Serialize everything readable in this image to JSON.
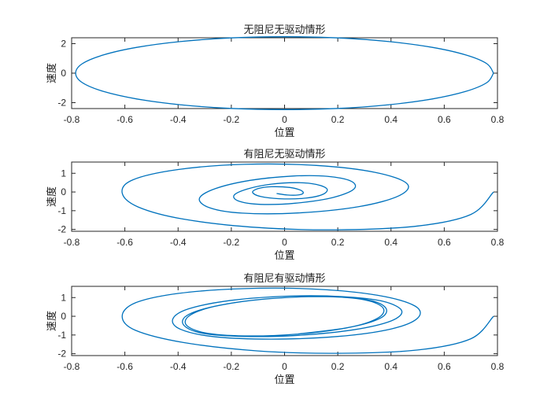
{
  "chart_data": [
    {
      "type": "line",
      "title": "无阻尼无驱动情形",
      "xlabel": "位置",
      "ylabel": "速度",
      "xlim": [
        -0.8,
        0.8
      ],
      "ylim": [
        -2.4,
        2.4
      ],
      "xticks": [
        -0.8,
        -0.6,
        -0.4,
        -0.2,
        0,
        0.2,
        0.4,
        0.6,
        0.8
      ],
      "xtick_labels": [
        "-0.8",
        "-0.6",
        "-0.4",
        "-0.2",
        "0",
        "0.2",
        "0.4",
        "0.6",
        "0.8"
      ],
      "yticks": [
        -2,
        0,
        2
      ],
      "ytick_labels": [
        "-2",
        "0",
        "2"
      ],
      "grid": false,
      "color": "#0072BD",
      "series": [
        {
          "x": [
            0.785,
            0.76,
            0.68,
            0.555,
            0.393,
            0.203,
            0.0,
            -0.203,
            -0.393,
            -0.555,
            -0.68,
            -0.76,
            -0.785,
            -0.76,
            -0.68,
            -0.555,
            -0.393,
            -0.203,
            0.0,
            0.203,
            0.393,
            0.555,
            0.68,
            0.76,
            0.785
          ],
          "y": [
            0.0,
            -0.64,
            -1.24,
            -1.75,
            -2.14,
            -2.39,
            -2.47,
            -2.39,
            -2.14,
            -1.75,
            -1.24,
            -0.64,
            0.0,
            0.64,
            1.24,
            1.75,
            2.14,
            2.39,
            2.47,
            2.39,
            2.14,
            1.75,
            1.24,
            0.64,
            0.0
          ]
        }
      ]
    },
    {
      "type": "line",
      "title": "有阻尼无驱动情形",
      "xlabel": "位置",
      "ylabel": "速度",
      "xlim": [
        -0.8,
        0.8
      ],
      "ylim": [
        -2.1,
        1.6
      ],
      "xticks": [
        -0.8,
        -0.6,
        -0.4,
        -0.2,
        0,
        0.2,
        0.4,
        0.6,
        0.8
      ],
      "xtick_labels": [
        "-0.8",
        "-0.6",
        "-0.4",
        "-0.2",
        "0",
        "0.2",
        "0.4",
        "0.6",
        "0.8"
      ],
      "yticks": [
        -2,
        -1,
        0,
        1
      ],
      "ytick_labels": [
        "-2",
        "-1",
        "0",
        "1"
      ],
      "grid": false,
      "color": "#0072BD",
      "series": [
        {
          "x": [
            0.785,
            0.7,
            0.5,
            0.2,
            -0.1,
            -0.38,
            -0.55,
            -0.61,
            -0.57,
            -0.4,
            -0.15,
            0.12,
            0.34,
            0.46,
            0.43,
            0.28,
            0.05,
            -0.16,
            -0.28,
            -0.32,
            -0.26,
            -0.13,
            0.03,
            0.16,
            0.25,
            0.26,
            0.18,
            0.04,
            -0.09,
            -0.17,
            -0.19,
            -0.14,
            -0.05,
            0.05,
            0.12,
            0.16,
            0.14,
            0.07,
            -0.02,
            -0.09,
            -0.12,
            -0.1,
            -0.05,
            0.02,
            0.06,
            0.07,
            0.05,
            0.01,
            -0.03
          ],
          "y": [
            0.0,
            -1.2,
            -1.82,
            -2.02,
            -1.9,
            -1.45,
            -0.8,
            -0.05,
            0.65,
            1.2,
            1.48,
            1.42,
            1.05,
            0.45,
            -0.2,
            -0.78,
            -1.12,
            -1.13,
            -0.85,
            -0.35,
            0.18,
            0.62,
            0.85,
            0.84,
            0.58,
            0.15,
            -0.3,
            -0.6,
            -0.66,
            -0.5,
            -0.18,
            0.16,
            0.42,
            0.5,
            0.4,
            0.15,
            -0.15,
            -0.34,
            -0.36,
            -0.24,
            -0.02,
            0.18,
            0.28,
            0.24,
            0.1,
            -0.06,
            -0.16,
            -0.16,
            -0.08
          ]
        }
      ]
    },
    {
      "type": "line",
      "title": "有阻尼有驱动情形",
      "xlabel": "位置",
      "ylabel": "速度",
      "xlim": [
        -0.8,
        0.8
      ],
      "ylim": [
        -2.1,
        1.6
      ],
      "xticks": [
        -0.8,
        -0.6,
        -0.4,
        -0.2,
        0,
        0.2,
        0.4,
        0.6,
        0.8
      ],
      "xtick_labels": [
        "-0.8",
        "-0.6",
        "-0.4",
        "-0.2",
        "0",
        "0.2",
        "0.4",
        "0.6",
        "0.8"
      ],
      "yticks": [
        -2,
        -1,
        0,
        1
      ],
      "ytick_labels": [
        "-2",
        "-1",
        "0",
        "1"
      ],
      "grid": false,
      "color": "#0072BD",
      "series": [
        {
          "x": [
            0.785,
            0.7,
            0.5,
            0.2,
            -0.1,
            -0.38,
            -0.56,
            -0.61,
            -0.56,
            -0.4,
            -0.15,
            0.12,
            0.35,
            0.49,
            0.5,
            0.4,
            0.2,
            -0.05,
            -0.26,
            -0.39,
            -0.42,
            -0.36,
            -0.2,
            0.02,
            0.22,
            0.37,
            0.44,
            0.4,
            0.26,
            0.05,
            -0.15,
            -0.31,
            -0.38,
            -0.36,
            -0.24,
            -0.05,
            0.15,
            0.31,
            0.38,
            0.36,
            0.24,
            0.05,
            -0.15,
            -0.3,
            -0.37,
            -0.35,
            -0.24,
            -0.05,
            0.15,
            0.3,
            0.37,
            0.35,
            0.24,
            0.05
          ],
          "y": [
            0.0,
            -1.2,
            -1.8,
            -1.98,
            -1.85,
            -1.4,
            -0.75,
            0.0,
            0.72,
            1.22,
            1.48,
            1.45,
            1.12,
            0.55,
            -0.1,
            -0.68,
            -1.08,
            -1.22,
            -1.1,
            -0.7,
            -0.15,
            0.4,
            0.85,
            1.08,
            1.05,
            0.8,
            0.3,
            -0.25,
            -0.72,
            -1.02,
            -1.08,
            -0.9,
            -0.45,
            0.1,
            0.6,
            0.95,
            1.05,
            0.88,
            0.45,
            -0.1,
            -0.6,
            -0.95,
            -1.05,
            -0.88,
            -0.45,
            0.1,
            0.6,
            0.95,
            1.05,
            0.88,
            0.45,
            -0.1,
            -0.6,
            -0.95
          ]
        }
      ]
    }
  ]
}
